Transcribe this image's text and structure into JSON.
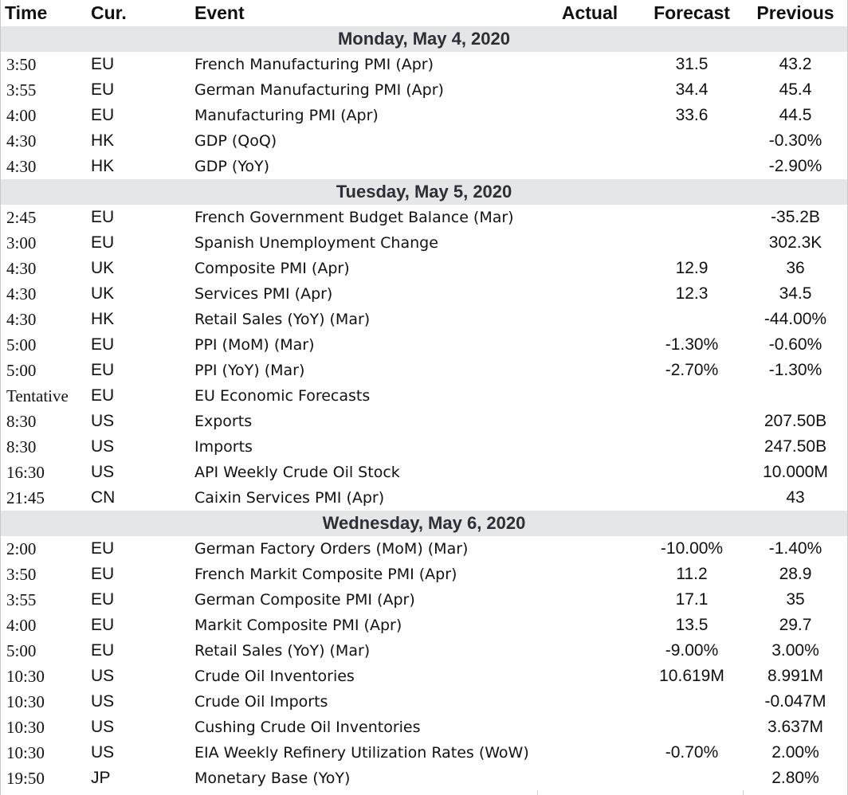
{
  "columns": {
    "time": "Time",
    "cur": "Cur.",
    "event": "Event",
    "actual": "Actual",
    "forecast": "Forecast",
    "previous": "Previous"
  },
  "days": [
    {
      "label": "Monday, May 4, 2020",
      "events": [
        {
          "time": "3:50",
          "cur": "EU",
          "event": "French Manufacturing PMI (Apr)",
          "actual": "",
          "forecast": "31.5",
          "previous": "43.2"
        },
        {
          "time": "3:55",
          "cur": "EU",
          "event": "German Manufacturing PMI (Apr)",
          "actual": "",
          "forecast": "34.4",
          "previous": "45.4"
        },
        {
          "time": "4:00",
          "cur": "EU",
          "event": "Manufacturing PMI (Apr)",
          "actual": "",
          "forecast": "33.6",
          "previous": "44.5"
        },
        {
          "time": "4:30",
          "cur": "HK",
          "event": "GDP (QoQ)",
          "actual": "",
          "forecast": "",
          "previous": "-0.30%"
        },
        {
          "time": "4:30",
          "cur": "HK",
          "event": "GDP (YoY)",
          "actual": "",
          "forecast": "",
          "previous": "-2.90%"
        }
      ]
    },
    {
      "label": "Tuesday, May 5, 2020",
      "events": [
        {
          "time": "2:45",
          "cur": "EU",
          "event": "French Government Budget Balance (Mar)",
          "actual": "",
          "forecast": "",
          "previous": "-35.2B"
        },
        {
          "time": "3:00",
          "cur": "EU",
          "event": "Spanish Unemployment Change",
          "actual": "",
          "forecast": "",
          "previous": "302.3K"
        },
        {
          "time": "4:30",
          "cur": "UK",
          "event": "Composite PMI (Apr)",
          "actual": "",
          "forecast": "12.9",
          "previous": "36"
        },
        {
          "time": "4:30",
          "cur": "UK",
          "event": "Services PMI (Apr)",
          "actual": "",
          "forecast": "12.3",
          "previous": "34.5"
        },
        {
          "time": "4:30",
          "cur": "HK",
          "event": "Retail Sales (YoY) (Mar)",
          "actual": "",
          "forecast": "",
          "previous": "-44.00%"
        },
        {
          "time": "5:00",
          "cur": "EU",
          "event": "PPI (MoM) (Mar)",
          "actual": "",
          "forecast": "-1.30%",
          "previous": "-0.60%"
        },
        {
          "time": "5:00",
          "cur": "EU",
          "event": "PPI (YoY) (Mar)",
          "actual": "",
          "forecast": "-2.70%",
          "previous": "-1.30%"
        },
        {
          "time": "Tentative",
          "cur": "EU",
          "event": "EU Economic Forecasts",
          "actual": "",
          "forecast": "",
          "previous": ""
        },
        {
          "time": "8:30",
          "cur": "US",
          "event": "Exports",
          "actual": "",
          "forecast": "",
          "previous": "207.50B"
        },
        {
          "time": "8:30",
          "cur": "US",
          "event": "Imports",
          "actual": "",
          "forecast": "",
          "previous": "247.50B"
        },
        {
          "time": "16:30",
          "cur": "US",
          "event": "API Weekly Crude Oil Stock",
          "actual": "",
          "forecast": "",
          "previous": "10.000M"
        },
        {
          "time": "21:45",
          "cur": "CN",
          "event": "Caixin Services PMI (Apr)",
          "actual": "",
          "forecast": "",
          "previous": "43"
        }
      ]
    },
    {
      "label": "Wednesday, May 6, 2020",
      "events": [
        {
          "time": "2:00",
          "cur": "EU",
          "event": "German Factory Orders (MoM) (Mar)",
          "actual": "",
          "forecast": "-10.00%",
          "previous": "-1.40%"
        },
        {
          "time": "3:50",
          "cur": "EU",
          "event": "French Markit Composite PMI (Apr)",
          "actual": "",
          "forecast": "11.2",
          "previous": "28.9"
        },
        {
          "time": "3:55",
          "cur": "EU",
          "event": "German Composite PMI (Apr)",
          "actual": "",
          "forecast": "17.1",
          "previous": "35"
        },
        {
          "time": "4:00",
          "cur": "EU",
          "event": "Markit Composite PMI (Apr)",
          "actual": "",
          "forecast": "13.5",
          "previous": "29.7"
        },
        {
          "time": "5:00",
          "cur": "EU",
          "event": "Retail Sales (YoY) (Mar)",
          "actual": "",
          "forecast": "-9.00%",
          "previous": "3.00%"
        },
        {
          "time": "10:30",
          "cur": "US",
          "event": "Crude Oil Inventories",
          "actual": "",
          "forecast": "10.619M",
          "previous": "8.991M"
        },
        {
          "time": "10:30",
          "cur": "US",
          "event": "Crude Oil Imports",
          "actual": "",
          "forecast": "",
          "previous": "-0.047M"
        },
        {
          "time": "10:30",
          "cur": "US",
          "event": "Cushing Crude Oil Inventories",
          "actual": "",
          "forecast": "",
          "previous": "3.637M"
        },
        {
          "time": "10:30",
          "cur": "US",
          "event": "EIA Weekly Refinery Utilization Rates (WoW)",
          "actual": "",
          "forecast": "-0.70%",
          "previous": "2.00%"
        },
        {
          "time": "19:50",
          "cur": "JP",
          "event": "Monetary Base (YoY)",
          "actual": "",
          "forecast": "",
          "previous": "2.80%"
        }
      ]
    }
  ]
}
